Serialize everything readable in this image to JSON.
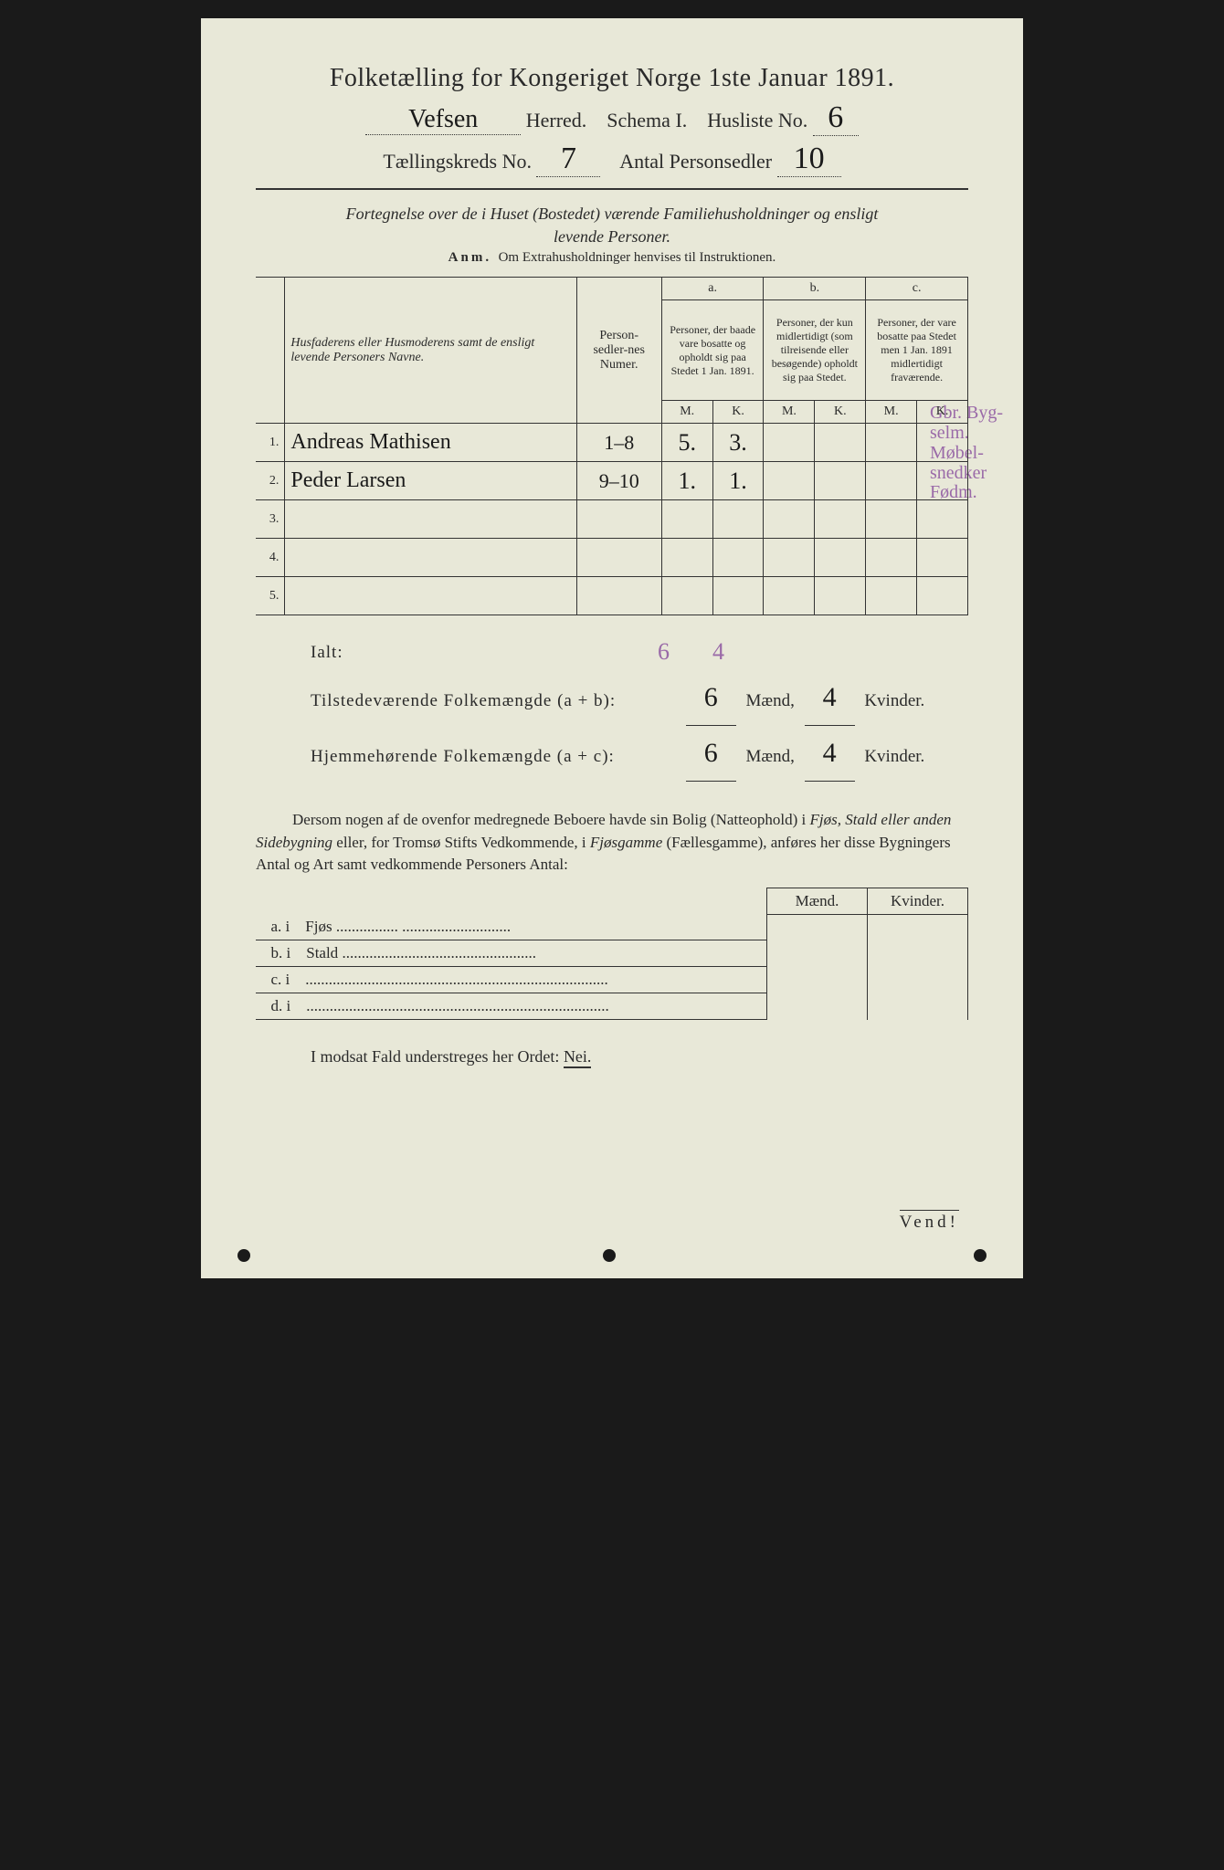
{
  "colors": {
    "paper_bg": "#e8e8d8",
    "text": "#2a2a2a",
    "handwriting": "#1a1a1a",
    "purple_ink": "#9a6aa8",
    "page_bg": "#1a1a1a",
    "rule": "#333333"
  },
  "typography": {
    "title_fontsize": 28,
    "header_fontsize": 22,
    "subtitle_fontsize": 18,
    "body_fontsize": 17,
    "table_fontsize": 14,
    "handwritten_fontsize": 28
  },
  "header": {
    "title": "Folketælling for Kongeriget Norge 1ste Januar 1891.",
    "herred_value": "Vefsen",
    "herred_label": "Herred.",
    "schema_label": "Schema I.",
    "husliste_label": "Husliste No.",
    "husliste_value": "6",
    "kreds_label": "Tællingskreds No.",
    "kreds_value": "7",
    "personsedler_label": "Antal Personsedler",
    "personsedler_value": "10"
  },
  "subtitle": {
    "line1": "Fortegnelse over de i Huset (Bostedet) værende Familiehusholdninger og ensligt",
    "line2": "levende Personer.",
    "anm_label": "Anm.",
    "anm_text": "Om Extrahusholdninger henvises til Instruktionen."
  },
  "table": {
    "col_name": "Husfaderens eller Husmoderens samt de ensligt levende Personers Navne.",
    "col_num": "Person-sedler-nes Numer.",
    "col_a_label": "a.",
    "col_a_text": "Personer, der baade vare bosatte og opholdt sig paa Stedet 1 Jan. 1891.",
    "col_b_label": "b.",
    "col_b_text": "Personer, der kun midlertidigt (som tilreisende eller besøgende) opholdt sig paa Stedet.",
    "col_c_label": "c.",
    "col_c_text": "Personer, der vare bosatte paa Stedet men 1 Jan. 1891 midlertidigt fraværende.",
    "sub_m": "M.",
    "sub_k": "K.",
    "rows": [
      {
        "n": "1.",
        "name": "Andreas Mathisen",
        "num": "1–8",
        "a_m": "5.",
        "a_k": "3.",
        "b_m": "",
        "b_k": "",
        "c_m": "",
        "c_k": ""
      },
      {
        "n": "2.",
        "name": "Peder Larsen",
        "num": "9–10",
        "a_m": "1.",
        "a_k": "1.",
        "b_m": "",
        "b_k": "",
        "c_m": "",
        "c_k": ""
      },
      {
        "n": "3.",
        "name": "",
        "num": "",
        "a_m": "",
        "a_k": "",
        "b_m": "",
        "b_k": "",
        "c_m": "",
        "c_k": ""
      },
      {
        "n": "4.",
        "name": "",
        "num": "",
        "a_m": "",
        "a_k": "",
        "b_m": "",
        "b_k": "",
        "c_m": "",
        "c_k": ""
      },
      {
        "n": "5.",
        "name": "",
        "num": "",
        "a_m": "",
        "a_k": "",
        "b_m": "",
        "b_k": "",
        "c_m": "",
        "c_k": ""
      }
    ],
    "margin_notes": {
      "line1": "Gbr. Byg-",
      "line2": "selm. Møbel-",
      "line3": "snedker",
      "line4": "Fødm."
    }
  },
  "ialt": {
    "label": "Ialt:",
    "purple_6": "6",
    "purple_4": "4",
    "line1_label": "Tilstedeværende Folkemængde (a + b):",
    "line1_m": "6",
    "line1_k": "4",
    "line2_label": "Hjemmehørende Folkemængde (a + c):",
    "line2_m": "6",
    "line2_k": "4",
    "maend": "Mænd,",
    "kvinder": "Kvinder."
  },
  "lower": {
    "para": "Dersom nogen af de ovenfor medregnede Beboere havde sin Bolig (Natteophold) i Fjøs, Stald eller anden Sidebygning eller, for Tromsø Stifts Vedkommende, i Fjøsgamme (Fællesgamme), anføres her disse Bygningers Antal og Art samt vedkommende Personers Antal:",
    "hdr_maend": "Mænd.",
    "hdr_kvinder": "Kvinder.",
    "rows": [
      {
        "k": "a.  i",
        "t": "Fjøs",
        "dots": "................  ............................"
      },
      {
        "k": "b.  i",
        "t": "Stald",
        "dots": ".................................................."
      },
      {
        "k": "c.  i",
        "t": "",
        "dots": ".............................................................................."
      },
      {
        "k": "d.  i",
        "t": "",
        "dots": ".............................................................................."
      }
    ],
    "nei_line_pre": "I modsat Fald understreges her Ordet: ",
    "nei": "Nei."
  },
  "footer": {
    "vend": "Vend!"
  }
}
